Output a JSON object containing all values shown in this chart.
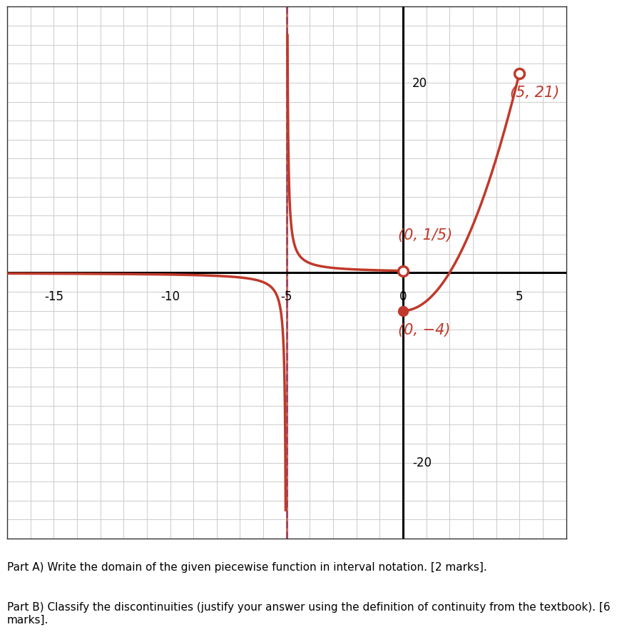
{
  "title": "",
  "xlim": [
    -17,
    7
  ],
  "ylim": [
    -28,
    28
  ],
  "grid_color": "#cccccc",
  "axis_color": "#000000",
  "curve_color": "#c0392b",
  "asymptote_color_blue": "#4169e1",
  "bg_color": "#ffffff",
  "label_0_1_5": "(0, 1/5)",
  "label_0_n4": "(0, −4)",
  "label_5_21": "(5, 21)",
  "open_circle_0": [
    0,
    0.2
  ],
  "filled_circle_0": [
    0,
    -4
  ],
  "open_circle_5": [
    5,
    21
  ],
  "text_color": "#c0392b",
  "font_size_labels": 15,
  "text_partA": "Part A) Write the domain of the given piecewise function in interval notation. [2 marks].",
  "text_partB": "Part B) Classify the discontinuities (justify your answer using the definition of continuity from the textbook). [6\nmarks].",
  "xtick_labels": [
    "-15",
    "-10",
    "-5",
    "0",
    "5"
  ],
  "xtick_positions": [
    -15,
    -10,
    -5,
    0,
    5
  ],
  "ytick_labels": [
    "20",
    "-20"
  ],
  "ytick_positions": [
    20,
    -20
  ],
  "border_color": "#333333"
}
